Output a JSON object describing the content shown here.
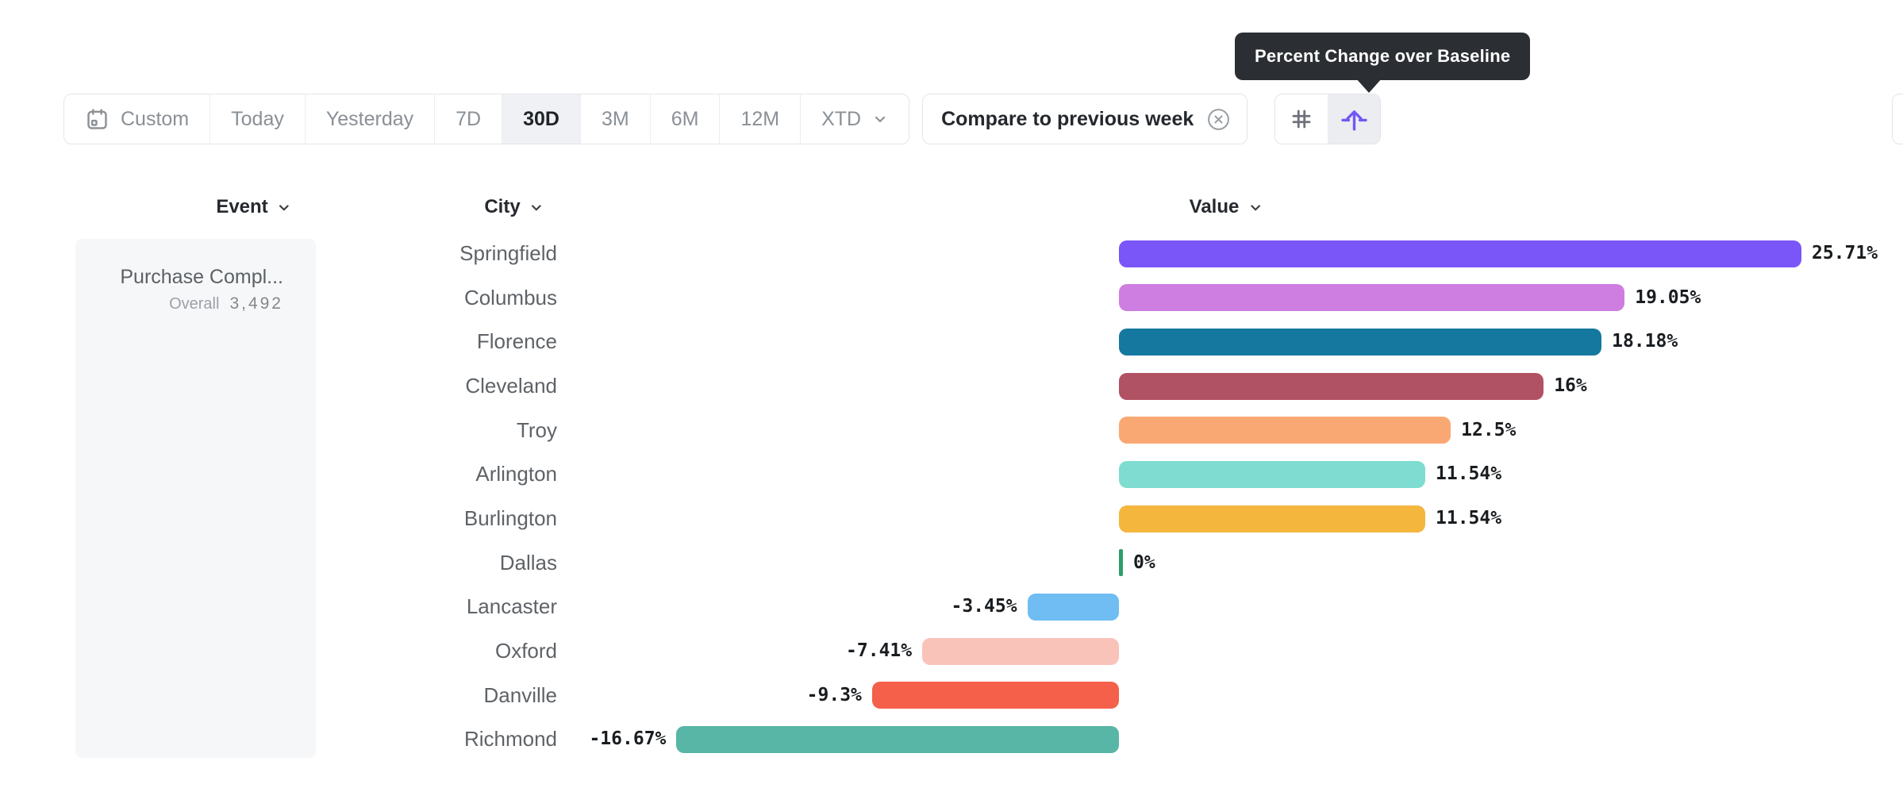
{
  "tooltip": {
    "text": "Percent Change over Baseline",
    "bg_color": "#2b2e33"
  },
  "toolbar": {
    "date_ranges": [
      {
        "label": "Custom",
        "icon": "calendar-icon",
        "selected": false
      },
      {
        "label": "Today",
        "selected": false
      },
      {
        "label": "Yesterday",
        "selected": false
      },
      {
        "label": "7D",
        "selected": false
      },
      {
        "label": "30D",
        "selected": true
      },
      {
        "label": "3M",
        "selected": false
      },
      {
        "label": "6M",
        "selected": false
      },
      {
        "label": "12M",
        "selected": false
      },
      {
        "label": "XTD",
        "icon": "chevron-down-icon",
        "selected": false
      }
    ],
    "compare_chip": {
      "label": "Compare to previous week",
      "icon": "close-circle-icon"
    },
    "view_toggle": [
      {
        "icon": "hash-icon",
        "selected": false
      },
      {
        "icon": "baseline-arrow-icon",
        "selected": true,
        "accent_color": "#7157f7"
      }
    ]
  },
  "chart": {
    "columns": [
      {
        "label": "Event"
      },
      {
        "label": "City"
      },
      {
        "label": "Value"
      }
    ],
    "event_panel": {
      "title": "Purchase Compl...",
      "overall_label": "Overall",
      "overall_value": "3,492"
    }
  },
  "chart_data": {
    "type": "bar",
    "orientation": "horizontal",
    "unit": "%",
    "baseline": 0,
    "value_axis_label": "Value",
    "category_axis_label": "City",
    "categories": [
      "Springfield",
      "Columbus",
      "Florence",
      "Cleveland",
      "Troy",
      "Arlington",
      "Burlington",
      "Dallas",
      "Lancaster",
      "Oxford",
      "Danville",
      "Richmond"
    ],
    "values": [
      25.71,
      19.05,
      18.18,
      16,
      12.5,
      11.54,
      11.54,
      0,
      -3.45,
      -7.41,
      -9.3,
      -16.67
    ],
    "labels": [
      "25.71%",
      "19.05%",
      "18.18%",
      "16%",
      "12.5%",
      "11.54%",
      "11.54%",
      "0%",
      "-3.45%",
      "-7.41%",
      "-9.3%",
      "-16.67%"
    ],
    "colors": [
      "#7a55f8",
      "#cd7ee0",
      "#14789f",
      "#b15264",
      "#faa873",
      "#7edcd1",
      "#f4b63c",
      "#2d9e68",
      "#6fbdf2",
      "#fac3ba",
      "#f4604a",
      "#57b6a5"
    ]
  }
}
